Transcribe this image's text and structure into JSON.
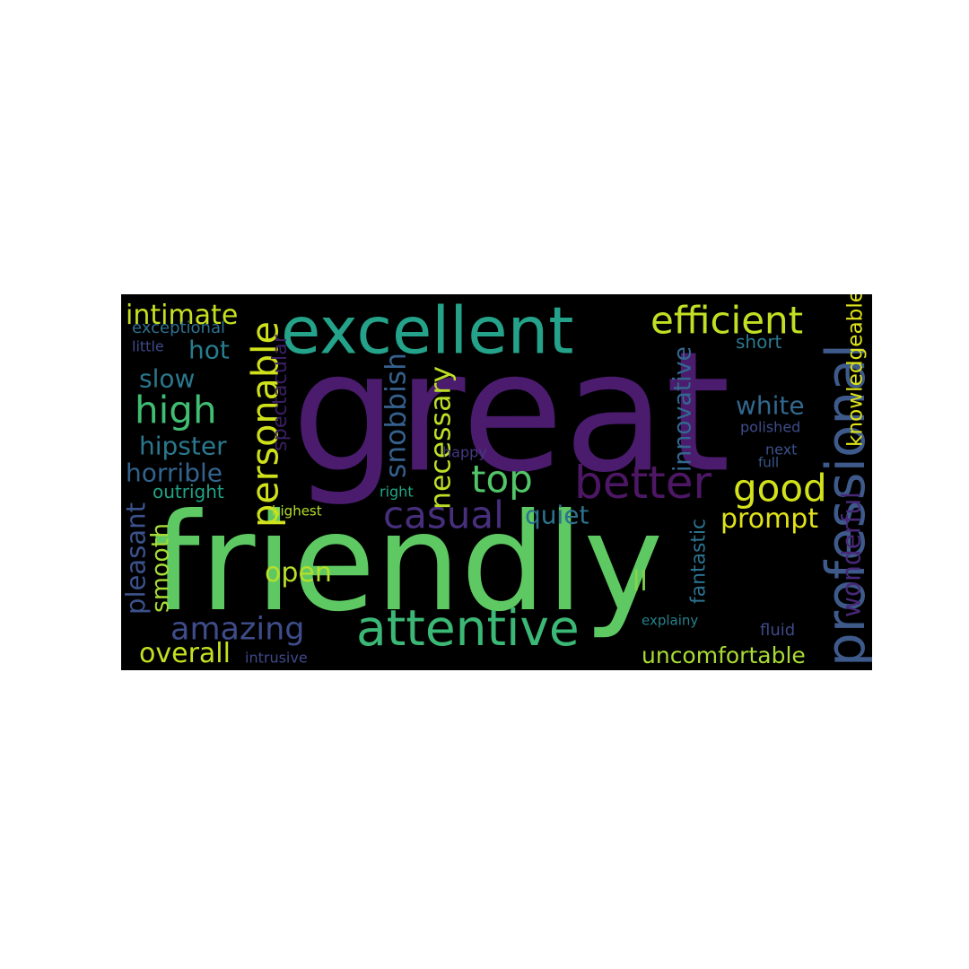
{
  "word_cloud": {
    "background": "#000000",
    "words": [
      {
        "text": "great",
        "color": "#4b1c6e"
      },
      {
        "text": "friendly",
        "color": "#5ec962"
      },
      {
        "text": "excellent",
        "color": "#24a38a"
      },
      {
        "text": "attentive",
        "color": "#3bb875"
      },
      {
        "text": "professional",
        "color": "#3d5a8a"
      },
      {
        "text": "efficient",
        "color": "#c2df23"
      },
      {
        "text": "better",
        "color": "#4e1766"
      },
      {
        "text": "casual",
        "color": "#472f7d"
      },
      {
        "text": "personable",
        "color": "#cfe11c"
      },
      {
        "text": "good",
        "color": "#d2e21b"
      },
      {
        "text": "high",
        "color": "#40bd72"
      },
      {
        "text": "amazing",
        "color": "#3e4c8a"
      },
      {
        "text": "top",
        "color": "#52c569"
      },
      {
        "text": "intimate",
        "color": "#c6e021"
      },
      {
        "text": "overall",
        "color": "#c5e021"
      },
      {
        "text": "uncomfortable",
        "color": "#a8db34"
      },
      {
        "text": "prompt",
        "color": "#e0e31a"
      },
      {
        "text": "open",
        "color": "#b8de29"
      },
      {
        "text": "quiet",
        "color": "#2c728e"
      },
      {
        "text": "white",
        "color": "#31688e"
      },
      {
        "text": "wonderful",
        "color": "#482878"
      },
      {
        "text": "hipster",
        "color": "#2a788e"
      },
      {
        "text": "horrible",
        "color": "#33638d"
      },
      {
        "text": "slow",
        "color": "#2a788e"
      },
      {
        "text": "hot",
        "color": "#287c8e"
      },
      {
        "text": "snobbish",
        "color": "#35608d"
      },
      {
        "text": "necessary",
        "color": "#bddf26"
      },
      {
        "text": "pleasant",
        "color": "#3b528b"
      },
      {
        "text": "ll",
        "color": "#85d54a"
      },
      {
        "text": "short",
        "color": "#2a788e"
      },
      {
        "text": "knowledgeable",
        "color": "#dde318"
      },
      {
        "text": "innovative",
        "color": "#31688e"
      },
      {
        "text": "outright",
        "color": "#20a386"
      },
      {
        "text": "exceptional",
        "color": "#2d708e"
      },
      {
        "text": "little",
        "color": "#3e4a89"
      },
      {
        "text": "spectacular",
        "color": "#3b1f63"
      },
      {
        "text": "polished",
        "color": "#3e4c8a"
      },
      {
        "text": "next",
        "color": "#3b528b"
      },
      {
        "text": "full",
        "color": "#39568c"
      },
      {
        "text": "happy",
        "color": "#453781"
      },
      {
        "text": "right",
        "color": "#22a884"
      },
      {
        "text": "highest",
        "color": "#b5de2b"
      },
      {
        "text": "smooth",
        "color": "#a5db36"
      },
      {
        "text": "fantastic",
        "color": "#2c718e"
      },
      {
        "text": "explainy",
        "color": "#26828e"
      },
      {
        "text": "fluid",
        "color": "#3e4a89"
      },
      {
        "text": "intrusive",
        "color": "#3e4989"
      }
    ]
  }
}
